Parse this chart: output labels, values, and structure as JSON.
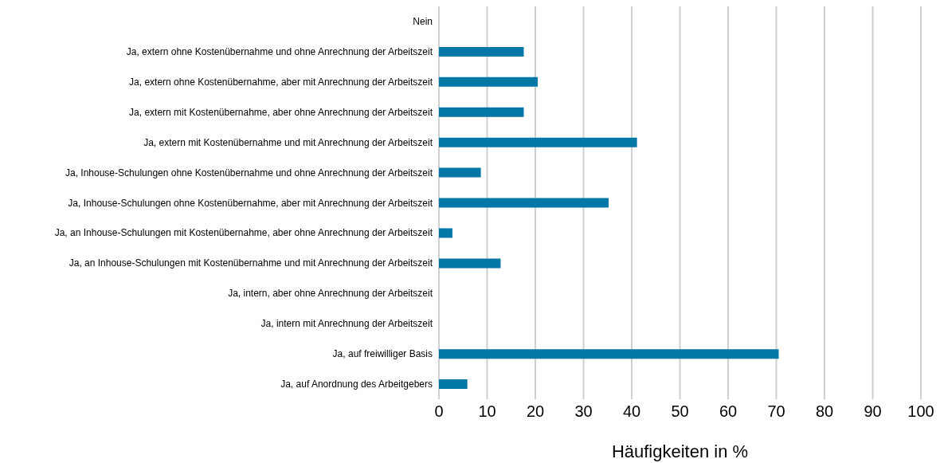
{
  "chart_data": {
    "type": "bar",
    "orientation": "horizontal",
    "xlabel": "Häufigkeiten in %",
    "categories": [
      "Nein",
      "Ja, extern ohne Kostenübernahme und ohne Anrechnung der Arbeitszeit",
      "Ja, extern ohne Kostenübernahme, aber mit Anrechnung der Arbeitszeit",
      "Ja, extern mit Kostenübernahme, aber ohne Anrechnung der Arbeitszeit",
      "Ja, extern mit Kostenübernahme und mit Anrechnung der Arbeitszeit",
      "Ja, Inhouse-Schulungen ohne Kostenübernahme und ohne Anrechnung der Arbeitszeit",
      "Ja, Inhouse-Schulungen ohne Kostenübernahme, aber mit Anrechnung der Arbeitszeit",
      "Ja, an Inhouse-Schulungen mit Kostenübernahme, aber ohne Anrechnung der Arbeitszeit",
      "Ja, an Inhouse-Schulungen mit Kostenübernahme und mit Anrechnung der Arbeitszeit",
      "Ja, intern, aber ohne Anrechnung der Arbeitszeit",
      "Ja, intern mit Anrechnung der Arbeitszeit",
      "Ja, auf freiwilliger Basis",
      "Ja, auf Anordnung des Arbeitgebers"
    ],
    "values": [
      0,
      17.6,
      20.5,
      17.6,
      41.1,
      8.7,
      35.2,
      2.8,
      12.8,
      0,
      0,
      70.5,
      5.9
    ],
    "color": "#0377a6",
    "xlim": [
      0,
      100
    ],
    "xticks": [
      0,
      10,
      20,
      30,
      40,
      50,
      60,
      70,
      80,
      90,
      100
    ],
    "grid": "x",
    "legend": false
  }
}
